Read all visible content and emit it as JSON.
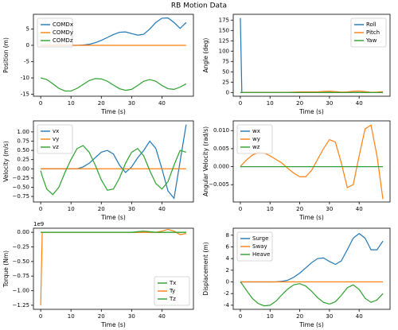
{
  "title": "RB Motion Data",
  "chart_data": [
    {
      "type": "line",
      "ylabel": "Position (m)",
      "xlabel": "Time (s)",
      "x": [
        0,
        0.5,
        2,
        4,
        6,
        8,
        10,
        12,
        14,
        16,
        18,
        20,
        22,
        24,
        26,
        28,
        30,
        32,
        34,
        36,
        38,
        40,
        42,
        44,
        46,
        48
      ],
      "xlim": [
        -2.4,
        50.4
      ],
      "xticks": [
        0,
        10,
        20,
        30,
        40
      ],
      "ylim": [
        -15.6,
        9.5
      ],
      "yticks": [
        -15,
        -10,
        -5,
        0,
        5
      ],
      "legend": "upper left",
      "series": [
        {
          "name": "COMDx",
          "color": "#1f77b4",
          "values": [
            0,
            0,
            0,
            0,
            0,
            0,
            0,
            0,
            0.1,
            0.3,
            0.8,
            1.5,
            2.4,
            3.3,
            4,
            4.1,
            3.6,
            3.1,
            3.4,
            5,
            7,
            8.3,
            8.4,
            7,
            5.2,
            7
          ]
        },
        {
          "name": "COMDy",
          "color": "#ff7f0e",
          "values": [
            0,
            0,
            0,
            0,
            0,
            0,
            0,
            0,
            0,
            0,
            0,
            0,
            0,
            0,
            0,
            0,
            0,
            0,
            0,
            0,
            0,
            0,
            0,
            0,
            0,
            0
          ]
        },
        {
          "name": "COMDz",
          "color": "#2ca02c",
          "values": [
            -10,
            -10.1,
            -10.5,
            -11.8,
            -13.2,
            -14,
            -14,
            -13.2,
            -12,
            -10.8,
            -10.2,
            -10.3,
            -11,
            -12.2,
            -13.3,
            -13.8,
            -13.5,
            -12.3,
            -11,
            -10.5,
            -11,
            -12.3,
            -13.3,
            -13.5,
            -12.8,
            -11.8
          ]
        }
      ]
    },
    {
      "type": "line",
      "ylabel": "Angle (deg)",
      "xlabel": "Time (s)",
      "x": [
        0,
        0.5,
        2,
        4,
        6,
        8,
        10,
        12,
        14,
        16,
        18,
        20,
        22,
        24,
        26,
        28,
        30,
        32,
        34,
        36,
        38,
        40,
        42,
        44,
        46,
        48
      ],
      "xlim": [
        -2.4,
        50.4
      ],
      "xticks": [
        0,
        10,
        20,
        30,
        40
      ],
      "ylim": [
        -9,
        189
      ],
      "yticks": [
        0,
        25,
        50,
        75,
        100,
        125,
        150,
        175
      ],
      "legend": "upper right",
      "series": [
        {
          "name": "Roll",
          "color": "#1f77b4",
          "values": [
            180,
            0,
            0,
            0,
            0,
            0,
            0,
            0,
            0,
            0,
            0,
            0,
            0,
            0,
            0,
            0,
            0,
            0,
            0,
            0,
            0,
            0,
            0,
            0,
            0,
            0
          ]
        },
        {
          "name": "Pitch",
          "color": "#ff7f0e",
          "values": [
            0,
            0,
            0,
            0,
            0,
            0,
            0,
            0,
            0.2,
            0.5,
            1,
            1.3,
            1.5,
            1.3,
            1.5,
            2.5,
            3,
            2.2,
            1,
            1.5,
            3,
            3.5,
            2,
            0.5,
            1,
            2
          ]
        },
        {
          "name": "Yaw",
          "color": "#2ca02c",
          "values": [
            0,
            0,
            0,
            0,
            0,
            0,
            0,
            0,
            0,
            0,
            0,
            0,
            0,
            0,
            0,
            0,
            0,
            0,
            0,
            0,
            0,
            0,
            0,
            0,
            0,
            0
          ]
        }
      ]
    },
    {
      "type": "line",
      "ylabel": "Velocity (m/s)",
      "xlabel": "Time (s)",
      "x": [
        0,
        0.5,
        2,
        4,
        6,
        8,
        10,
        12,
        14,
        16,
        18,
        20,
        22,
        24,
        26,
        28,
        30,
        32,
        34,
        36,
        38,
        40,
        42,
        44,
        46,
        48
      ],
      "xlim": [
        -2.4,
        50.4
      ],
      "xticks": [
        0,
        10,
        20,
        30,
        40
      ],
      "ylim": [
        -0.9,
        1.3
      ],
      "yticks": [
        {
          "value": -0.75,
          "label": "−0.75"
        },
        {
          "value": -0.5,
          "label": "−0.50"
        },
        {
          "value": -0.25,
          "label": "−0.25"
        },
        {
          "value": 0,
          "label": "0.00"
        },
        {
          "value": 0.25,
          "label": "0.25"
        },
        {
          "value": 0.5,
          "label": "0.50"
        },
        {
          "value": 0.75,
          "label": "0.75"
        },
        {
          "value": 1,
          "label": "1.00"
        }
      ],
      "legend": "upper left",
      "series": [
        {
          "name": "vx",
          "color": "#1f77b4",
          "values": [
            0,
            0,
            0,
            0,
            0,
            0,
            0,
            0,
            0.05,
            0.15,
            0.3,
            0.45,
            0.5,
            0.4,
            0.1,
            -0.1,
            0.05,
            0.3,
            0.5,
            0.75,
            0.55,
            0,
            -0.6,
            -0.8,
            0.2,
            1.2
          ]
        },
        {
          "name": "vy",
          "color": "#ff7f0e",
          "values": [
            0,
            0,
            0,
            0,
            0,
            0,
            0,
            0,
            0,
            0,
            0,
            0,
            0,
            0,
            0,
            0,
            0,
            0,
            0,
            0,
            0,
            0,
            0,
            0,
            0,
            0
          ]
        },
        {
          "name": "vz",
          "color": "#2ca02c",
          "values": [
            -0.05,
            -0.2,
            -0.55,
            -0.7,
            -0.5,
            -0.1,
            0.25,
            0.55,
            0.63,
            0.45,
            0.1,
            -0.3,
            -0.58,
            -0.55,
            -0.25,
            0.15,
            0.45,
            0.55,
            0.35,
            -0.05,
            -0.4,
            -0.55,
            -0.35,
            0.1,
            0.5,
            0.45
          ]
        }
      ]
    },
    {
      "type": "line",
      "ylabel": "Angular Velocity (rad/s)",
      "xlabel": "Time (s)",
      "x": [
        0,
        0.5,
        2,
        4,
        6,
        8,
        10,
        12,
        14,
        16,
        18,
        20,
        22,
        24,
        26,
        28,
        30,
        32,
        34,
        36,
        38,
        40,
        42,
        44,
        46,
        48
      ],
      "xlim": [
        -2.4,
        50.4
      ],
      "xticks": [
        0,
        10,
        20,
        30,
        40
      ],
      "ylim": [
        -0.0098,
        0.0127
      ],
      "yticks": [
        {
          "value": -0.005,
          "label": "−0.005"
        },
        {
          "value": 0,
          "label": "0.000"
        },
        {
          "value": 0.005,
          "label": "0.005"
        },
        {
          "value": 0.01,
          "label": "0.010"
        }
      ],
      "legend": "upper left",
      "series": [
        {
          "name": "wx",
          "color": "#1f77b4",
          "values": [
            0,
            0,
            0,
            0,
            0,
            0,
            0,
            0,
            0,
            0,
            0,
            0,
            0,
            0,
            0,
            0,
            0,
            0,
            0,
            0,
            0,
            0,
            0,
            0,
            0,
            0
          ]
        },
        {
          "name": "wy",
          "color": "#ff7f0e",
          "values": [
            0,
            0.0005,
            0.0018,
            0.0032,
            0.0039,
            0.0038,
            0.003,
            0.002,
            0.001,
            -0.0005,
            -0.0018,
            -0.0028,
            -0.0028,
            -0.001,
            0.002,
            0.005,
            0.0075,
            0.0068,
            0.001,
            -0.0058,
            -0.005,
            0.003,
            0.0105,
            0.0115,
            0.003,
            -0.009
          ]
        },
        {
          "name": "wz",
          "color": "#2ca02c",
          "values": [
            0,
            0,
            0,
            0,
            0,
            0,
            0,
            0,
            0,
            0,
            0,
            0,
            0,
            0,
            0,
            0,
            0,
            0,
            0,
            0,
            0,
            0,
            0,
            0,
            0,
            0
          ]
        }
      ]
    },
    {
      "type": "line",
      "ylabel": "Torque (Nm)",
      "xlabel": "Time (s)",
      "offset_label": "1e9",
      "x": [
        0,
        0.5,
        2,
        4,
        6,
        8,
        10,
        12,
        14,
        16,
        18,
        20,
        22,
        24,
        26,
        28,
        30,
        32,
        34,
        36,
        38,
        40,
        42,
        44,
        46,
        48
      ],
      "xlim": [
        -2.4,
        50.4
      ],
      "xticks": [
        0,
        10,
        20,
        30,
        40
      ],
      "ylim": [
        -1.32,
        0.07
      ],
      "yticks": [
        {
          "value": -1.25,
          "label": "−1.25"
        },
        {
          "value": -1,
          "label": "−1.00"
        },
        {
          "value": -0.75,
          "label": "−0.75"
        },
        {
          "value": -0.5,
          "label": "−0.50"
        },
        {
          "value": -0.25,
          "label": "−0.25"
        },
        {
          "value": 0,
          "label": "0.00"
        }
      ],
      "legend": "lower right",
      "series": [
        {
          "name": "Tx",
          "color": "#2ca02c",
          "values": [
            0,
            0,
            0,
            0,
            0,
            0,
            0,
            0,
            0,
            0,
            0,
            0,
            0,
            0,
            0,
            0,
            0,
            0,
            0,
            0,
            0,
            0,
            0,
            0,
            0,
            0
          ]
        },
        {
          "name": "Ty",
          "color": "#ff7f0e",
          "values": [
            -1.25,
            0,
            0,
            0,
            0,
            0,
            0,
            0,
            0,
            0,
            0,
            0,
            0,
            0,
            0,
            0,
            0,
            0,
            0,
            0,
            0,
            0.02,
            0.05,
            0.02,
            -0.04,
            -0.02
          ]
        },
        {
          "name": "Tz",
          "color": "#2ca02c",
          "values": [
            0,
            0,
            0,
            0,
            0,
            0,
            0,
            0,
            0,
            0,
            0,
            0,
            0,
            0,
            0,
            0,
            0,
            0.01,
            0.02,
            0.01,
            0,
            0,
            0,
            0,
            0,
            0
          ]
        }
      ]
    },
    {
      "type": "line",
      "ylabel": "Displacement (m)",
      "xlabel": "Time (s)",
      "x": [
        0,
        0.5,
        2,
        4,
        6,
        8,
        10,
        12,
        14,
        16,
        18,
        20,
        22,
        24,
        26,
        28,
        30,
        32,
        34,
        36,
        38,
        40,
        42,
        44,
        46,
        48
      ],
      "xlim": [
        -2.4,
        50.4
      ],
      "xticks": [
        0,
        10,
        20,
        30,
        40
      ],
      "ylim": [
        -4.7,
        9.2
      ],
      "yticks": [
        -4,
        -2,
        0,
        2,
        4,
        6,
        8
      ],
      "legend": "upper left",
      "series": [
        {
          "name": "Surge",
          "color": "#1f77b4",
          "values": [
            0,
            0,
            0,
            0,
            0,
            0,
            0,
            0,
            0.1,
            0.3,
            0.8,
            1.5,
            2.4,
            3.3,
            4,
            4.1,
            3.5,
            3,
            3.6,
            5.5,
            7.5,
            8.3,
            7.5,
            5.5,
            5.5,
            7
          ]
        },
        {
          "name": "Sway",
          "color": "#ff7f0e",
          "values": [
            0,
            0,
            0,
            0,
            0,
            0,
            0,
            0,
            0,
            0,
            0,
            0,
            0,
            0,
            0,
            0,
            0,
            0,
            0,
            0,
            0,
            0,
            0,
            0,
            0,
            0
          ]
        },
        {
          "name": "Heave",
          "color": "#2ca02c",
          "values": [
            0,
            -0.3,
            -1.4,
            -2.8,
            -3.7,
            -4.1,
            -4,
            -3.3,
            -2.2,
            -1.2,
            -0.5,
            -0.3,
            -0.7,
            -1.6,
            -2.7,
            -3.5,
            -3.8,
            -3.4,
            -2.3,
            -1,
            -0.5,
            -1.3,
            -2.8,
            -3.5,
            -3.1,
            -2
          ]
        }
      ]
    }
  ]
}
